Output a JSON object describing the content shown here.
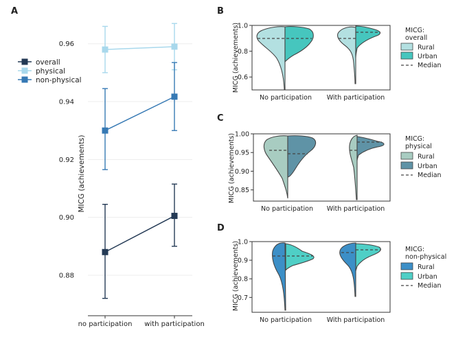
{
  "panel_labels": {
    "A": "A",
    "B": "B",
    "C": "C",
    "D": "D"
  },
  "colors": {
    "overall": "#243a55",
    "physical": "#a8d8ec",
    "non_physical": "#3679b4",
    "grid": "#ededed",
    "axis": "#333333",
    "b_rural": "#b3e0e1",
    "b_urban": "#46c6be",
    "c_rural": "#a8ccc1",
    "c_urban": "#5f93a6",
    "d_rural": "#3c8fc7",
    "d_urban": "#4fcfc6"
  },
  "chart_data": [
    {
      "id": "A",
      "type": "line",
      "ylabel": "MICG (achievements)",
      "categories": [
        "no participation",
        "with participation"
      ],
      "ylim": [
        0.866,
        0.968
      ],
      "yticks": [
        0.88,
        0.9,
        0.92,
        0.94,
        0.96
      ],
      "ytick_labels": [
        "0.88",
        "0.90",
        "0.92",
        "0.94",
        "0.96"
      ],
      "grid": true,
      "legend_position": "left",
      "series": [
        {
          "key": "overall",
          "name": "overall",
          "values": [
            0.888,
            0.9005
          ],
          "ci_low": [
            0.872,
            0.89
          ],
          "ci_high": [
            0.9045,
            0.9115
          ]
        },
        {
          "key": "physical",
          "name": "physical",
          "values": [
            0.958,
            0.959
          ],
          "ci_low": [
            0.95,
            0.951
          ],
          "ci_high": [
            0.966,
            0.967
          ]
        },
        {
          "key": "non_physical",
          "name": "non-physical",
          "values": [
            0.93,
            0.9417
          ],
          "ci_low": [
            0.9165,
            0.93
          ],
          "ci_high": [
            0.9445,
            0.9535
          ]
        }
      ]
    },
    {
      "id": "B",
      "type": "split-violin",
      "ylabel": "MICG (achievements)",
      "categories": [
        "No participation",
        "With participation"
      ],
      "ylim": [
        0.5,
        1.0
      ],
      "yticks": [
        0.6,
        0.8,
        1.0
      ],
      "ytick_labels": [
        "0.6",
        "0.8",
        "1.0"
      ],
      "legend_title": [
        "MICG:",
        "overall"
      ],
      "legend": [
        "Rural",
        "Urban",
        "Median"
      ],
      "median": {
        "No participation": {
          "Rural": 0.91,
          "Urban": 0.91
        },
        "With participation": {
          "Rural": 0.91,
          "Urban": 0.95
        }
      },
      "range": {
        "No participation": {
          "Rural": [
            0.52,
            1.0
          ],
          "Urban": [
            0.8,
            1.0
          ]
        },
        "With participation": {
          "Rural": [
            0.58,
            1.0
          ],
          "Urban": [
            0.84,
            1.0
          ]
        }
      }
    },
    {
      "id": "C",
      "type": "split-violin",
      "ylabel": "MICG (achievements)",
      "categories": [
        "No participation",
        "With participation"
      ],
      "ylim": [
        0.82,
        1.0
      ],
      "yticks": [
        0.85,
        0.9,
        0.95,
        1.0
      ],
      "ytick_labels": [
        "0.85",
        "0.90",
        "0.95",
        "1.00"
      ],
      "legend_title": [
        "MICG:",
        "physical"
      ],
      "legend": [
        "Rural",
        "Urban",
        "Median"
      ],
      "median": {
        "No participation": {
          "Rural": 0.955,
          "Urban": 0.948
        },
        "With participation": {
          "Rural": 0.955,
          "Urban": 0.978
        }
      },
      "range": {
        "No participation": {
          "Rural": [
            0.83,
            1.0
          ],
          "Urban": [
            0.88,
            1.0
          ]
        },
        "With participation": {
          "Rural": [
            0.82,
            1.0
          ],
          "Urban": [
            0.94,
            0.99
          ]
        }
      }
    },
    {
      "id": "D",
      "type": "split-violin",
      "ylabel": "MICG (achievements)",
      "categories": [
        "No participation",
        "With participation"
      ],
      "ylim": [
        0.62,
        1.0
      ],
      "yticks": [
        0.7,
        0.8,
        0.9,
        1.0
      ],
      "ytick_labels": [
        "0.7",
        "0.8",
        "0.9",
        "1.0"
      ],
      "legend_title": [
        "MICG:",
        "non-physical"
      ],
      "legend": [
        "Rural",
        "Urban",
        "Median"
      ],
      "median": {
        "No participation": {
          "Rural": 0.93,
          "Urban": 0.93
        },
        "With participation": {
          "Rural": 0.95,
          "Urban": 0.97
        }
      },
      "range": {
        "No participation": {
          "Rural": [
            0.64,
            1.0
          ],
          "Urban": [
            0.88,
            1.0
          ]
        },
        "With participation": {
          "Rural": [
            0.71,
            1.0
          ],
          "Urban": [
            0.88,
            1.0
          ]
        }
      }
    }
  ]
}
